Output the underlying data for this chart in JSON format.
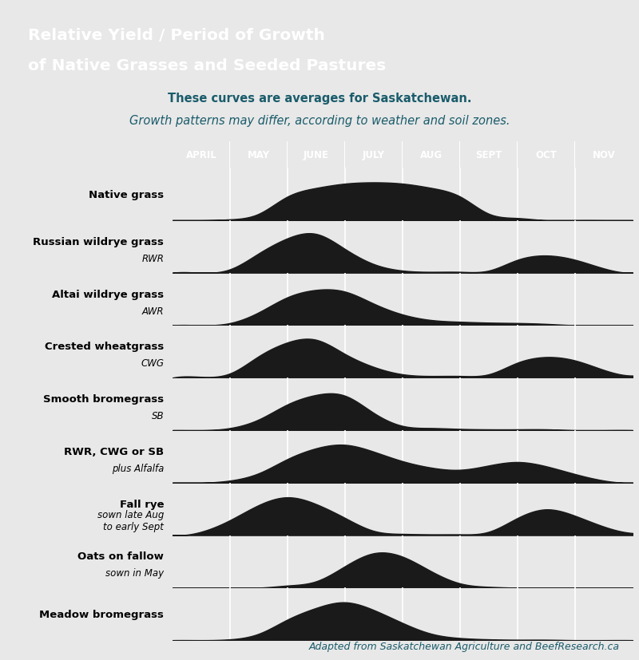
{
  "title_line1": "Relative Yield / Period of Growth",
  "title_line2": "of Native Grasses and Seeded Pastures",
  "title_bg": "#1a5c6b",
  "subtitle1": "These curves are averages for Saskatchewan.",
  "subtitle2": "Growth patterns may differ, according to weather and soil zones.",
  "header_bg": "#2a7d6e",
  "header_months": [
    "APRIL",
    "MAY",
    "JUNE",
    "JULY",
    "AUG",
    "SEPT",
    "OCT",
    "NOV"
  ],
  "row_bg": "#d9d9d9",
  "row_separator": "#1a1a1a",
  "curve_color": "#1a1a1a",
  "grid_color": "#ffffff",
  "page_bg": "#e8e8e8",
  "footer_text": "Adapted from Saskatchewan Agriculture and BeefResearch.ca",
  "rows": [
    {
      "label_main": "Native grass",
      "label_sub": "",
      "curve_x": [
        0.0,
        0.5,
        1.0,
        1.5,
        2.0,
        2.5,
        3.0,
        3.5,
        4.0,
        4.5,
        5.0,
        5.5,
        6.0,
        6.5,
        7.0,
        7.5,
        8.0
      ],
      "curve_y": [
        0.0,
        0.0,
        0.02,
        0.15,
        0.55,
        0.75,
        0.85,
        0.88,
        0.85,
        0.75,
        0.55,
        0.15,
        0.05,
        0.0,
        0.0,
        0.0,
        0.0
      ]
    },
    {
      "label_main": "Russian wildrye grass",
      "label_sub": "RWR",
      "curve_x": [
        0.0,
        0.5,
        1.0,
        1.5,
        2.0,
        2.5,
        3.0,
        3.5,
        4.0,
        4.5,
        5.0,
        5.5,
        6.0,
        6.5,
        7.0,
        7.5,
        8.0
      ],
      "curve_y": [
        0.0,
        0.0,
        0.08,
        0.45,
        0.8,
        0.9,
        0.55,
        0.2,
        0.05,
        0.02,
        0.02,
        0.05,
        0.3,
        0.4,
        0.3,
        0.1,
        0.0
      ]
    },
    {
      "label_main": "Altai wildrye grass",
      "label_sub": "AWR",
      "curve_x": [
        0.0,
        0.5,
        1.0,
        1.5,
        2.0,
        2.5,
        3.0,
        3.5,
        4.0,
        4.5,
        5.0,
        5.5,
        6.0,
        6.5,
        7.0,
        7.5,
        8.0
      ],
      "curve_y": [
        0.0,
        0.0,
        0.05,
        0.3,
        0.65,
        0.82,
        0.78,
        0.5,
        0.25,
        0.12,
        0.08,
        0.06,
        0.05,
        0.03,
        0.0,
        0.0,
        0.0
      ]
    },
    {
      "label_main": "Crested wheatgrass",
      "label_sub": "CWG",
      "curve_x": [
        0.0,
        0.5,
        1.0,
        1.5,
        2.0,
        2.5,
        3.0,
        3.5,
        4.0,
        4.5,
        5.0,
        5.5,
        6.0,
        6.5,
        7.0,
        7.5,
        8.0
      ],
      "curve_y": [
        0.0,
        0.02,
        0.1,
        0.5,
        0.82,
        0.88,
        0.55,
        0.25,
        0.08,
        0.04,
        0.04,
        0.08,
        0.35,
        0.48,
        0.4,
        0.18,
        0.05
      ]
    },
    {
      "label_main": "Smooth bromegrass",
      "label_sub": "SB",
      "curve_x": [
        0.0,
        0.5,
        1.0,
        1.5,
        2.0,
        2.5,
        3.0,
        3.5,
        4.0,
        4.5,
        5.0,
        5.5,
        6.0,
        6.5,
        7.0,
        7.5,
        8.0
      ],
      "curve_y": [
        0.0,
        0.0,
        0.05,
        0.25,
        0.6,
        0.82,
        0.8,
        0.4,
        0.1,
        0.05,
        0.03,
        0.02,
        0.02,
        0.02,
        0.0,
        0.0,
        0.0
      ]
    },
    {
      "label_main": "RWR, CWG or SB",
      "label_sub": "plus Alfalfa",
      "curve_x": [
        0.0,
        0.5,
        1.0,
        1.5,
        2.0,
        2.5,
        3.0,
        3.5,
        4.0,
        4.5,
        5.0,
        5.5,
        6.0,
        6.5,
        7.0,
        7.5,
        8.0
      ],
      "curve_y": [
        0.0,
        0.0,
        0.05,
        0.22,
        0.55,
        0.8,
        0.88,
        0.72,
        0.5,
        0.35,
        0.3,
        0.4,
        0.48,
        0.38,
        0.2,
        0.05,
        0.0
      ]
    },
    {
      "label_main": "Fall rye",
      "label_sub": "sown late Aug\nto early Sept",
      "curve_x": [
        0.0,
        0.5,
        1.0,
        1.5,
        2.0,
        2.5,
        3.0,
        3.5,
        4.0,
        4.5,
        5.0,
        5.5,
        6.0,
        6.5,
        7.0,
        7.5,
        8.0
      ],
      "curve_y": [
        0.0,
        0.08,
        0.35,
        0.7,
        0.88,
        0.72,
        0.4,
        0.1,
        0.03,
        0.02,
        0.02,
        0.08,
        0.4,
        0.6,
        0.45,
        0.2,
        0.05
      ]
    },
    {
      "label_main": "Oats on fallow",
      "label_sub": "sown in May",
      "curve_x": [
        0.0,
        0.5,
        1.0,
        1.5,
        2.0,
        2.5,
        3.0,
        3.5,
        4.0,
        4.5,
        5.0,
        5.5,
        6.0,
        6.5,
        7.0,
        7.5,
        8.0
      ],
      "curve_y": [
        0.0,
        0.0,
        0.0,
        0.0,
        0.05,
        0.15,
        0.5,
        0.8,
        0.72,
        0.38,
        0.1,
        0.02,
        0.0,
        0.0,
        0.0,
        0.0,
        0.0
      ]
    },
    {
      "label_main": "Meadow bromegrass",
      "label_sub": "",
      "curve_x": [
        0.0,
        0.5,
        1.0,
        1.5,
        2.0,
        2.5,
        3.0,
        3.5,
        4.0,
        4.5,
        5.0,
        5.5,
        6.0,
        6.5,
        7.0,
        7.5,
        8.0
      ],
      "curve_y": [
        0.0,
        0.0,
        0.02,
        0.15,
        0.48,
        0.75,
        0.88,
        0.7,
        0.4,
        0.15,
        0.05,
        0.02,
        0.01,
        0.01,
        0.0,
        0.0,
        0.0
      ]
    }
  ]
}
